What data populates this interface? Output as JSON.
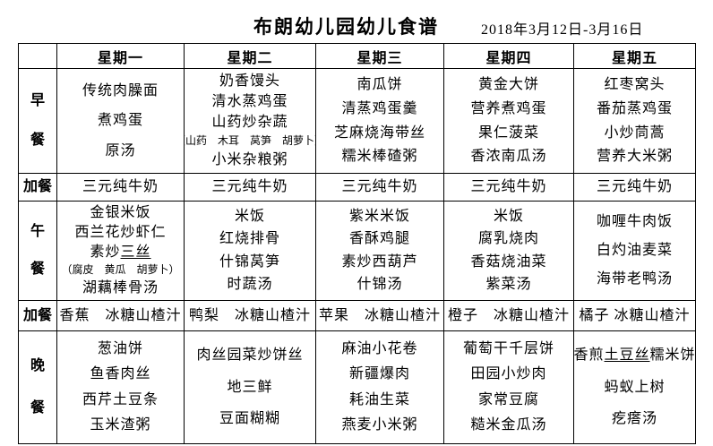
{
  "header": {
    "title": "布朗幼儿园幼儿食谱",
    "date_range": "2018年3月12日-3月16日"
  },
  "table": {
    "day_headers": [
      "星期一",
      "星期二",
      "星期三",
      "星期四",
      "星期五"
    ],
    "rows": [
      {
        "label": "早餐",
        "cells": [
          [
            "传统肉臊面",
            "煮鸡蛋",
            "原汤"
          ],
          [
            "奶香馒头",
            "清水蒸鸡蛋",
            "山药炒杂蔬",
            {
              "text": "（山药　木耳　莴笋　胡萝卜）",
              "small": true
            },
            "小米杂粮粥"
          ],
          [
            "南瓜饼",
            "清蒸鸡蛋羹",
            "芝麻烧海带丝",
            "糯米棒碴粥"
          ],
          [
            "黄金大饼",
            "营养煮鸡蛋",
            "果仁菠菜",
            "香浓南瓜汤"
          ],
          [
            "红枣窝头",
            "番茄蒸鸡蛋",
            "小炒茼蒿",
            "营养大米粥"
          ]
        ]
      },
      {
        "label": "加餐",
        "cells": [
          [
            "三元纯牛奶"
          ],
          [
            "三元纯牛奶"
          ],
          [
            "三元纯牛奶"
          ],
          [
            "三元纯牛奶"
          ],
          [
            "三元纯牛奶"
          ]
        ]
      },
      {
        "label": "午餐",
        "cells": [
          [
            "金银米饭",
            "西兰花炒虾仁",
            {
              "text": "素炒三丝",
              "underline": "三丝"
            },
            {
              "text": "（腐皮　黄瓜　胡萝卜）",
              "small": true
            },
            "湖藕棒骨汤"
          ],
          [
            "米饭",
            "红烧排骨",
            "什锦莴笋",
            "时蔬汤"
          ],
          [
            "紫米米饭",
            "香酥鸡腿",
            "素炒西葫芦",
            "什锦汤"
          ],
          [
            "米饭",
            "腐乳烧肉",
            "香菇烧油菜",
            "紫菜汤"
          ],
          [
            "咖喱牛肉饭",
            "白灼油麦菜",
            "海带老鸭汤"
          ]
        ]
      },
      {
        "label": "加餐",
        "cells": [
          [
            "香蕉　冰糖山楂汁"
          ],
          [
            "鸭梨　冰糖山楂汁"
          ],
          [
            "苹果　冰糖山楂汁"
          ],
          [
            "橙子　冰糖山楂汁"
          ],
          [
            "橘子 冰糖山楂汁"
          ]
        ]
      },
      {
        "label": "晚餐",
        "cells": [
          [
            "葱油饼",
            "鱼香肉丝",
            "西芹土豆条",
            "玉米渣粥"
          ],
          [
            "肉丝园菜炒饼丝",
            "地三鲜",
            "豆面糊糊"
          ],
          [
            "麻油小花卷",
            "新疆爆肉",
            "耗油生菜",
            "燕麦小米粥"
          ],
          [
            "葡萄干千层饼",
            "田园小炒肉",
            "家常豆腐",
            "糙米金瓜汤"
          ],
          [
            {
              "text": "香煎土豆丝糯米饼",
              "underline": "土豆丝"
            },
            "蚂蚁上树",
            "疙瘩汤"
          ]
        ]
      }
    ]
  }
}
